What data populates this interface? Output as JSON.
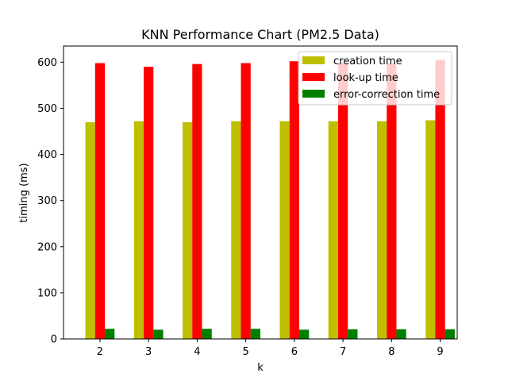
{
  "chart_data": {
    "type": "bar",
    "title": "KNN Performance Chart (PM2.5 Data)",
    "xlabel": "k",
    "ylabel": "timing (ms)",
    "categories": [
      "2",
      "3",
      "4",
      "5",
      "6",
      "7",
      "8",
      "9"
    ],
    "ylim": [
      0,
      635
    ],
    "yticks": [
      "0",
      "100",
      "200",
      "300",
      "400",
      "500",
      "600"
    ],
    "grid": false,
    "legend_position": "upper-right",
    "series": [
      {
        "name": "creation time",
        "color": "#bfbf00",
        "values": [
          470,
          472,
          470,
          472,
          472,
          472,
          472,
          474
        ]
      },
      {
        "name": "look-up time",
        "color": "#ff0000",
        "values": [
          598,
          590,
          596,
          598,
          602,
          598,
          597,
          605
        ]
      },
      {
        "name": "error-correction time",
        "color": "#008000",
        "values": [
          22,
          20,
          22,
          22,
          20,
          21,
          21,
          21
        ]
      }
    ]
  }
}
